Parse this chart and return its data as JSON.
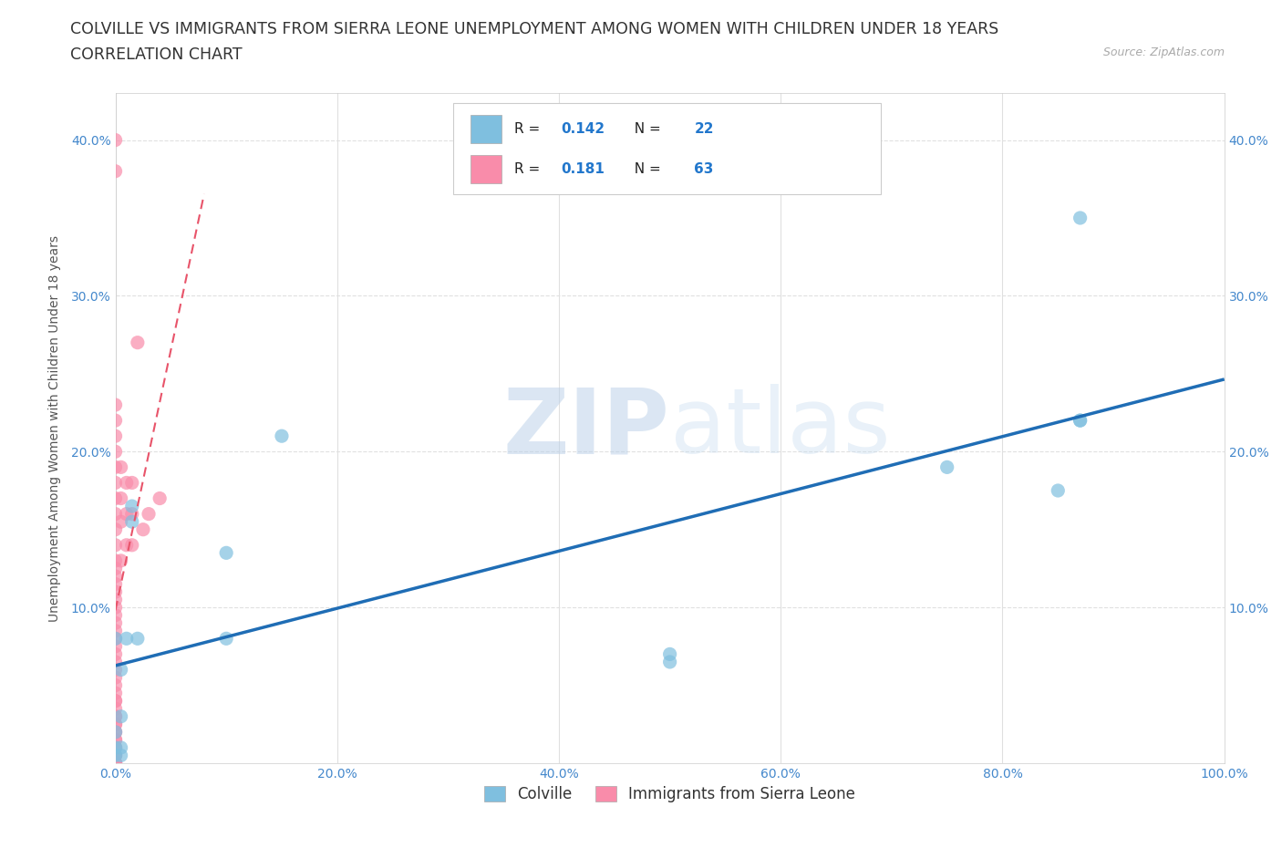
{
  "title_line1": "COLVILLE VS IMMIGRANTS FROM SIERRA LEONE UNEMPLOYMENT AMONG WOMEN WITH CHILDREN UNDER 18 YEARS",
  "title_line2": "CORRELATION CHART",
  "source_text": "Source: ZipAtlas.com",
  "ylabel": "Unemployment Among Women with Children Under 18 years",
  "xlim": [
    0.0,
    1.0
  ],
  "ylim": [
    0.0,
    0.43
  ],
  "xtick_vals": [
    0.0,
    0.2,
    0.4,
    0.6,
    0.8,
    1.0
  ],
  "ytick_vals": [
    0.0,
    0.1,
    0.2,
    0.3,
    0.4
  ],
  "right_ytick_vals": [
    0.1,
    0.2,
    0.3,
    0.4
  ],
  "right_ytick_labels": [
    "10.0%",
    "20.0%",
    "30.0%",
    "40.0%"
  ],
  "legend_r1": "0.142",
  "legend_n1": "22",
  "legend_r2": "0.181",
  "legend_n2": "63",
  "colville_color": "#7fbfdf",
  "sierra_leone_color": "#f98caa",
  "trend_colville_color": "#1f6db5",
  "trend_sierra_leone_color": "#e8546a",
  "watermark_color": "#d0dff0",
  "background_color": "#ffffff",
  "grid_color": "#e0e0e0",
  "title_color": "#333333",
  "axis_text_color": "#4488cc",
  "colville_x": [
    0.0,
    0.0,
    0.0,
    0.0,
    0.005,
    0.005,
    0.005,
    0.005,
    0.01,
    0.015,
    0.015,
    0.02,
    0.1,
    0.1,
    0.15,
    0.5,
    0.5,
    0.75,
    0.85,
    0.87,
    0.87,
    0.87
  ],
  "colville_y": [
    0.005,
    0.01,
    0.02,
    0.08,
    0.005,
    0.01,
    0.03,
    0.06,
    0.08,
    0.155,
    0.165,
    0.08,
    0.08,
    0.135,
    0.21,
    0.065,
    0.07,
    0.19,
    0.175,
    0.22,
    0.22,
    0.35
  ],
  "sierra_leone_x": [
    0.0,
    0.0,
    0.0,
    0.0,
    0.0,
    0.0,
    0.0,
    0.0,
    0.0,
    0.0,
    0.0,
    0.0,
    0.0,
    0.0,
    0.0,
    0.0,
    0.0,
    0.0,
    0.0,
    0.0,
    0.0,
    0.0,
    0.0,
    0.0,
    0.0,
    0.0,
    0.0,
    0.0,
    0.0,
    0.0,
    0.0,
    0.0,
    0.0,
    0.0,
    0.0,
    0.0,
    0.0,
    0.0,
    0.0,
    0.0,
    0.0,
    0.0,
    0.0,
    0.0,
    0.0,
    0.0,
    0.0,
    0.0,
    0.0,
    0.005,
    0.005,
    0.005,
    0.005,
    0.01,
    0.01,
    0.01,
    0.015,
    0.015,
    0.015,
    0.02,
    0.025,
    0.03,
    0.04
  ],
  "sierra_leone_y": [
    0.0,
    0.0,
    0.0,
    0.0,
    0.005,
    0.005,
    0.01,
    0.01,
    0.015,
    0.015,
    0.02,
    0.02,
    0.025,
    0.025,
    0.03,
    0.03,
    0.035,
    0.04,
    0.04,
    0.045,
    0.05,
    0.055,
    0.06,
    0.065,
    0.07,
    0.075,
    0.08,
    0.085,
    0.09,
    0.095,
    0.1,
    0.105,
    0.11,
    0.115,
    0.12,
    0.125,
    0.13,
    0.14,
    0.15,
    0.16,
    0.17,
    0.18,
    0.19,
    0.2,
    0.21,
    0.22,
    0.23,
    0.38,
    0.4,
    0.13,
    0.155,
    0.17,
    0.19,
    0.14,
    0.16,
    0.18,
    0.14,
    0.16,
    0.18,
    0.27,
    0.15,
    0.16,
    0.17
  ],
  "title_fontsize": 12.5,
  "subtitle_fontsize": 12.5,
  "axis_label_fontsize": 10,
  "tick_fontsize": 10,
  "legend_fontsize": 11
}
